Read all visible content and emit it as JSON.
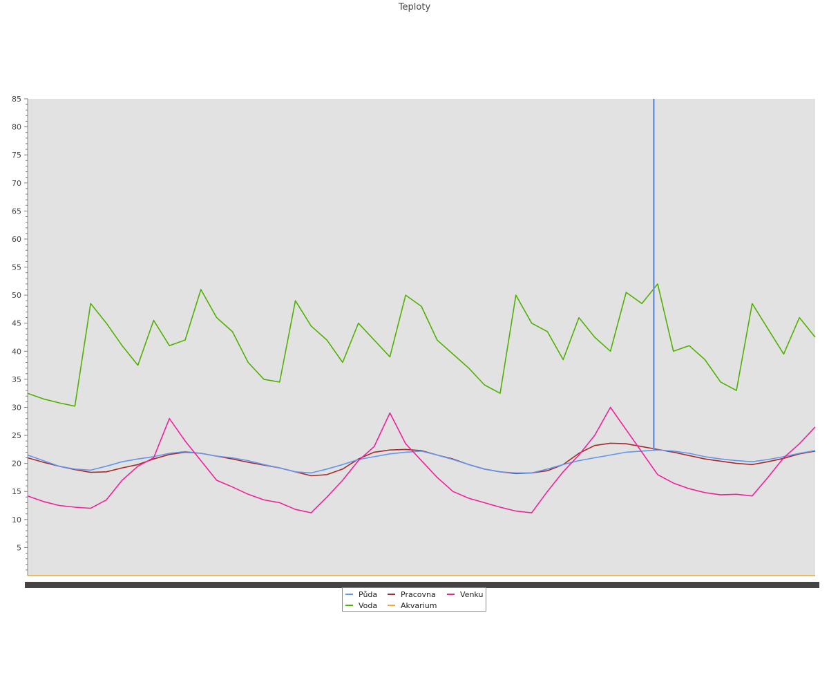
{
  "chart_data": {
    "type": "line",
    "title": "Teploty",
    "xlabel": "",
    "ylabel": "",
    "ylim": [
      0,
      85
    ],
    "yticks": [
      "5",
      "10",
      "15",
      "20",
      "25",
      "30",
      "35",
      "40",
      "45",
      "50",
      "55",
      "60",
      "65",
      "70",
      "75",
      "80",
      "85"
    ],
    "grid": false,
    "legend_position": "bottom",
    "x": [
      0,
      2,
      4,
      6,
      8,
      10,
      12,
      14,
      16,
      18,
      20,
      22,
      24,
      26,
      28,
      30,
      32,
      34,
      36,
      38,
      40,
      42,
      44,
      46,
      48,
      50,
      52,
      54,
      56,
      58,
      60,
      62,
      64,
      66,
      68,
      70,
      72,
      74,
      76,
      78,
      80,
      82,
      84,
      86,
      88,
      90,
      92,
      94,
      96,
      98,
      100
    ],
    "series": [
      {
        "name": "Půda",
        "color": "#6495ed",
        "values": [
          21.5,
          20.5,
          19.5,
          19.0,
          18.8,
          19.5,
          20.3,
          20.8,
          21.2,
          21.8,
          22.1,
          21.8,
          21.3,
          21.0,
          20.5,
          19.8,
          19.2,
          18.5,
          18.3,
          19.0,
          19.8,
          20.7,
          21.2,
          21.7,
          22.0,
          22.2,
          21.5,
          20.7,
          19.8,
          19.0,
          18.5,
          18.3,
          18.3,
          19.0,
          19.8,
          20.5,
          21.0,
          21.5,
          22.0,
          22.2,
          22.4,
          22.2,
          21.8,
          21.2,
          20.8,
          20.5,
          20.3,
          20.7,
          21.2,
          21.8,
          22.3
        ]
      },
      {
        "name": "Pracovna",
        "color": "#a52a2a",
        "values": [
          21.0,
          20.2,
          19.5,
          18.9,
          18.4,
          18.5,
          19.2,
          19.8,
          20.8,
          21.6,
          22.0,
          21.8,
          21.3,
          20.8,
          20.2,
          19.7,
          19.2,
          18.5,
          17.8,
          18.0,
          19.0,
          20.8,
          22.0,
          22.4,
          22.5,
          22.3,
          21.5,
          20.8,
          19.8,
          19.0,
          18.5,
          18.2,
          18.3,
          18.7,
          19.8,
          21.8,
          23.2,
          23.6,
          23.5,
          23.0,
          22.5,
          22.0,
          21.4,
          20.8,
          20.4,
          20.0,
          19.8,
          20.3,
          20.9,
          21.7,
          22.2
        ]
      },
      {
        "name": "Venku",
        "color": "#f0209a",
        "values": [
          14.2,
          13.2,
          12.5,
          12.2,
          12.0,
          13.5,
          17.0,
          19.5,
          21.0,
          28.0,
          24.0,
          20.5,
          17.0,
          15.8,
          14.5,
          13.5,
          13.0,
          11.8,
          11.2,
          14.0,
          17.0,
          20.5,
          23.0,
          29.0,
          23.5,
          20.5,
          17.5,
          15.0,
          13.8,
          13.0,
          12.2,
          11.5,
          11.2,
          15.0,
          18.5,
          21.5,
          25.0,
          30.0,
          26.0,
          22.0,
          18.0,
          16.5,
          15.5,
          14.8,
          14.4,
          14.5,
          14.2,
          17.5,
          21.0,
          23.5,
          26.5
        ]
      },
      {
        "name": "Voda",
        "color": "#4fb000",
        "values": [
          32.5,
          31.5,
          30.8,
          30.2,
          48.5,
          45.0,
          41.0,
          37.5,
          45.5,
          41.0,
          42.0,
          51.0,
          46.0,
          43.5,
          38.0,
          35.0,
          34.5,
          49.0,
          44.5,
          42.0,
          38.0,
          45.0,
          42.0,
          39.0,
          50.0,
          48.0,
          42.0,
          39.5,
          37.0,
          34.0,
          32.5,
          50.0,
          45.0,
          43.5,
          38.5,
          46.0,
          42.5,
          40.0,
          50.5,
          48.5,
          52.0,
          40.0,
          41.0,
          38.5,
          34.5,
          33.0,
          48.5,
          44.0,
          39.5,
          46.0,
          42.5
        ]
      },
      {
        "name": "Akvarium",
        "color": "#f0a830",
        "values": [
          0,
          0,
          0,
          0,
          0,
          0,
          0,
          0,
          0,
          0,
          0,
          0,
          0,
          0,
          0,
          0,
          0,
          0,
          0,
          0,
          0,
          0,
          0,
          0,
          0,
          0,
          0,
          0,
          0,
          0,
          0,
          0,
          0,
          0,
          0,
          0,
          0,
          0,
          0,
          0,
          0,
          0,
          0,
          0,
          0,
          0,
          0,
          0,
          0,
          0,
          0
        ]
      }
    ],
    "annotations": [
      {
        "series": "Půda",
        "type": "spike",
        "x_fraction": 0.795,
        "value": 85
      }
    ]
  }
}
